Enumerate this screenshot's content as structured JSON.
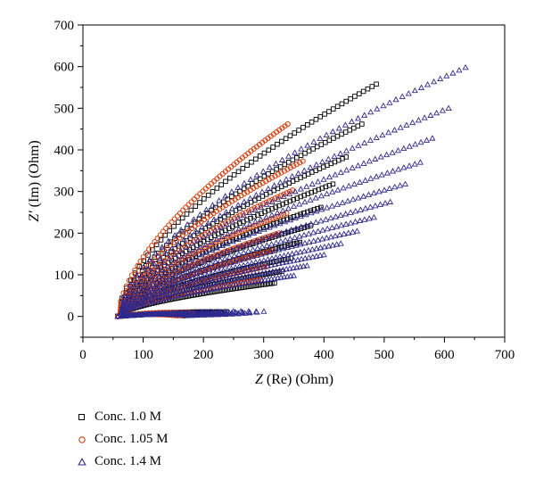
{
  "chart_data": {
    "type": "scatter",
    "xlabel_italic": "Z",
    "xlabel_rest": " (Re) (Ohm)",
    "ylabel_italic": "Z′",
    "ylabel_rest": " (Im) (Ohm)",
    "xlim": [
      0,
      700
    ],
    "ylim": [
      -50,
      700
    ],
    "xticks": [
      0,
      100,
      200,
      300,
      400,
      500,
      600,
      700
    ],
    "yticks": [
      0,
      100,
      200,
      300,
      400,
      500,
      600,
      700
    ],
    "grid": false,
    "legend_position": "bottom-left",
    "series": [
      {
        "name": "Conc. 1.0 M",
        "marker": "square",
        "color": "#000000",
        "curves": [
          {
            "start": [
              58,
              0
            ],
            "end": [
              487,
              558
            ],
            "base": 0
          },
          {
            "start": [
              58,
              0
            ],
            "end": [
              463,
              462
            ],
            "base": 0
          },
          {
            "start": [
              58,
              0
            ],
            "end": [
              437,
              383
            ],
            "base": 0
          },
          {
            "start": [
              58,
              0
            ],
            "end": [
              415,
              318
            ],
            "base": 0
          },
          {
            "start": [
              58,
              0
            ],
            "end": [
              395,
              262
            ],
            "base": 0
          },
          {
            "start": [
              58,
              0
            ],
            "end": [
              378,
              218
            ],
            "base": 0
          },
          {
            "start": [
              58,
              0
            ],
            "end": [
              360,
              178
            ],
            "base": 0
          },
          {
            "start": [
              58,
              0
            ],
            "end": [
              345,
              140
            ],
            "base": 0
          },
          {
            "start": [
              58,
              0
            ],
            "end": [
              330,
              108
            ],
            "base": 0
          },
          {
            "start": [
              58,
              0
            ],
            "end": [
              318,
              80
            ],
            "base": 0
          }
        ],
        "points_per_curve": 60
      },
      {
        "name": "Conc. 1.05 M",
        "marker": "circle",
        "color": "#d43f0f",
        "curves": [
          {
            "start": [
              58,
              0
            ],
            "end": [
              340,
              462
            ],
            "base": 0
          },
          {
            "start": [
              58,
              0
            ],
            "end": [
              365,
              373
            ],
            "base": 0
          },
          {
            "start": [
              58,
              0
            ],
            "end": [
              348,
              303
            ],
            "base": 0
          },
          {
            "start": [
              58,
              0
            ],
            "end": [
              338,
              248
            ],
            "base": 0
          },
          {
            "start": [
              58,
              0
            ],
            "end": [
              325,
              200
            ],
            "base": 0
          },
          {
            "start": [
              58,
              0
            ],
            "end": [
              315,
              158
            ],
            "base": 0
          },
          {
            "start": [
              58,
              0
            ],
            "end": [
              305,
              120
            ],
            "base": 0
          },
          {
            "start": [
              58,
              0
            ],
            "end": [
              295,
              88
            ],
            "base": 0
          }
        ],
        "points_per_curve": 60
      },
      {
        "name": "Conc. 1.4 M",
        "marker": "triangle",
        "color": "#2e2a8f",
        "curves": [
          {
            "start": [
              58,
              0
            ],
            "end": [
              635,
              598
            ],
            "base": 0
          },
          {
            "start": [
              58,
              0
            ],
            "end": [
              607,
              500
            ],
            "base": 0
          },
          {
            "start": [
              58,
              0
            ],
            "end": [
              580,
              428
            ],
            "base": 0
          },
          {
            "start": [
              58,
              0
            ],
            "end": [
              560,
              370
            ],
            "base": 0
          },
          {
            "start": [
              58,
              0
            ],
            "end": [
              535,
              318
            ],
            "base": 0
          },
          {
            "start": [
              58,
              0
            ],
            "end": [
              510,
              275
            ],
            "base": 0
          },
          {
            "start": [
              58,
              0
            ],
            "end": [
              483,
              238
            ],
            "base": 0
          },
          {
            "start": [
              58,
              0
            ],
            "end": [
              455,
              205
            ],
            "base": 0
          },
          {
            "start": [
              58,
              0
            ],
            "end": [
              428,
              175
            ],
            "base": 0
          },
          {
            "start": [
              58,
              0
            ],
            "end": [
              400,
              148
            ],
            "base": 0
          },
          {
            "start": [
              58,
              0
            ],
            "end": [
              372,
              122
            ],
            "base": 0
          },
          {
            "start": [
              58,
              0
            ],
            "end": [
              350,
              98
            ],
            "base": 0
          }
        ],
        "points_per_curve": 55
      }
    ]
  },
  "legend": {
    "items": [
      {
        "label": "Conc. 1.0 M"
      },
      {
        "label": "Conc. 1.05 M"
      },
      {
        "label": "Conc. 1.4 M"
      }
    ]
  }
}
